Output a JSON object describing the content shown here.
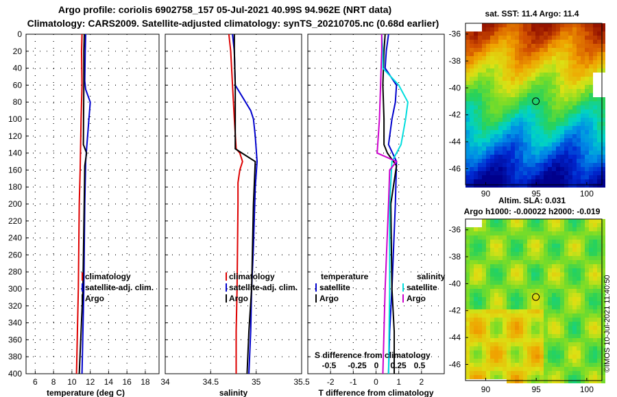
{
  "titles": {
    "line1": "Argo profile: coriolis 6902758_157 05-Jul-2021 40.99S 94.962E (NRT data)",
    "line2": "Climatology: CARS2009. Satellite-adjusted climatology: synTS_20210705.nc (0.68d earlier)"
  },
  "colors": {
    "climatology": "#dd0000",
    "satellite": "#0000cc",
    "argo": "#000000",
    "sat_salinity": "#00dddd",
    "argo_salinity": "#cc00cc"
  },
  "chart_data": [
    {
      "type": "line",
      "id": "temperature",
      "xlabel": "temperature (deg C)",
      "ylabel": "",
      "xlim": [
        5,
        19.5
      ],
      "ylim": [
        0,
        400
      ],
      "xticks": [
        "6",
        "8",
        "10",
        "12",
        "14",
        "16",
        "18"
      ],
      "xtick_values": [
        6,
        8,
        10,
        12,
        14,
        16,
        18
      ],
      "yticks": [
        "0",
        "20",
        "40",
        "60",
        "80",
        "100",
        "120",
        "140",
        "160",
        "180",
        "200",
        "220",
        "240",
        "260",
        "280",
        "300",
        "320",
        "340",
        "360",
        "380",
        "400"
      ],
      "ytick_values": [
        0,
        20,
        40,
        60,
        80,
        100,
        120,
        140,
        160,
        180,
        200,
        220,
        240,
        260,
        280,
        300,
        320,
        340,
        360,
        380,
        400
      ],
      "legend": [
        "climatology",
        "satellite-adj. clim.",
        "Argo"
      ],
      "series": [
        {
          "name": "climatology",
          "color": "#dd0000",
          "x": [
            11.1,
            11.05,
            11.1,
            11.0,
            10.9,
            10.8,
            10.7,
            10.6,
            10.5
          ],
          "depth": [
            0,
            20,
            60,
            100,
            160,
            200,
            300,
            350,
            400
          ]
        },
        {
          "name": "satellite-adj. clim.",
          "color": "#0000cc",
          "x": [
            11.5,
            11.45,
            11.4,
            11.5,
            12.0,
            11.6,
            11.5,
            11.4,
            11.3,
            11.2,
            11.1
          ],
          "depth": [
            0,
            20,
            55,
            65,
            80,
            135,
            150,
            200,
            300,
            350,
            400
          ]
        },
        {
          "name": "Argo",
          "color": "#000000",
          "x": [
            11.35,
            11.3,
            11.3,
            11.25,
            11.6,
            11.4,
            11.2,
            11.0,
            10.8
          ],
          "depth": [
            0,
            20,
            60,
            130,
            140,
            155,
            300,
            350,
            400
          ]
        }
      ]
    },
    {
      "type": "line",
      "id": "salinity",
      "xlabel": "salinity",
      "ylabel": "",
      "xlim": [
        34,
        35.5
      ],
      "ylim": [
        0,
        400
      ],
      "xticks": [
        "34",
        "34.5",
        "35",
        "35.5"
      ],
      "xtick_values": [
        34,
        34.5,
        35,
        35.5
      ],
      "legend": [
        "climatology",
        "satellite-adj. clim.",
        "Argo"
      ],
      "series": [
        {
          "name": "climatology",
          "color": "#dd0000",
          "x": [
            34.7,
            34.72,
            34.74,
            34.76,
            34.78,
            34.82,
            34.85,
            34.82,
            34.8,
            34.8,
            34.79,
            34.78,
            34.78
          ],
          "depth": [
            0,
            20,
            60,
            100,
            135,
            140,
            150,
            160,
            175,
            200,
            300,
            350,
            400
          ]
        },
        {
          "name": "satellite-adj. clim.",
          "color": "#0000cc",
          "x": [
            34.74,
            34.76,
            34.77,
            34.94,
            34.97,
            34.99,
            35.01,
            34.99,
            34.97,
            34.95,
            34.94,
            34.92
          ],
          "depth": [
            0,
            20,
            60,
            90,
            100,
            120,
            150,
            180,
            250,
            300,
            350,
            400
          ]
        },
        {
          "name": "Argo",
          "color": "#000000",
          "x": [
            34.76,
            34.76,
            34.77,
            34.77,
            34.99,
            34.97,
            34.95,
            34.92,
            34.9
          ],
          "depth": [
            0,
            20,
            60,
            135,
            150,
            200,
            300,
            350,
            400
          ]
        }
      ]
    },
    {
      "type": "line",
      "id": "difference",
      "xlabel": "T difference from climatology",
      "ylabel": "",
      "xlim": [
        -3,
        3
      ],
      "ylim": [
        0,
        400
      ],
      "xticks": [
        "-2",
        "-1",
        "0",
        "1",
        "2"
      ],
      "xtick_values": [
        -2,
        -1,
        0,
        1,
        2
      ],
      "top_axis_label": "S difference from climatology",
      "top_axis_ticks": [
        "-0.5",
        "-0.25",
        "0",
        "0.25",
        "0.5"
      ],
      "legend_left_title": "temperature",
      "legend_right_title": "salinity",
      "legend": [
        "satellite",
        "Argo",
        "satellite",
        "Argo"
      ],
      "series": [
        {
          "name": "T satellite",
          "color": "#0000cc",
          "x": [
            0.55,
            0.45,
            0.4,
            0.9,
            0.85,
            0.7,
            0.55,
            0.9,
            0.85,
            0.7,
            0.6,
            0.55
          ],
          "depth": [
            0,
            20,
            40,
            60,
            80,
            100,
            130,
            150,
            200,
            300,
            350,
            400
          ]
        },
        {
          "name": "T Argo",
          "color": "#000000",
          "x": [
            0.4,
            0.35,
            0.3,
            0.35,
            0.35,
            0.5,
            0.9,
            0.65,
            0.7,
            0.8,
            0.8
          ],
          "depth": [
            0,
            20,
            60,
            100,
            130,
            140,
            155,
            200,
            300,
            350,
            400
          ]
        },
        {
          "name": "S satellite",
          "color": "#00dddd",
          "x": [
            0.25,
            0.3,
            0.3,
            1.0,
            1.4,
            1.3,
            1.1,
            0.7,
            0.6,
            0.6,
            0.55
          ],
          "depth": [
            0,
            20,
            40,
            60,
            80,
            100,
            130,
            150,
            200,
            300,
            400
          ]
        },
        {
          "name": "S Argo",
          "color": "#cc00cc",
          "x": [
            0.25,
            0.25,
            0.2,
            0.15,
            0.05,
            0.9,
            0.6,
            0.55,
            0.4,
            0.35,
            0.3
          ],
          "depth": [
            0,
            20,
            60,
            100,
            140,
            150,
            160,
            200,
            300,
            350,
            400
          ]
        }
      ]
    },
    {
      "type": "heatmap",
      "id": "sst_map",
      "title": "sat. SST: 11.4 Argo: 11.4",
      "xticks": [
        "90",
        "95",
        "100"
      ],
      "yticks": [
        "-36",
        "-38",
        "-40",
        "-42",
        "-44",
        "-46"
      ],
      "xlim": [
        88,
        101.5
      ],
      "ylim": [
        -47.2,
        -35.2
      ],
      "marker": {
        "lon": 94.962,
        "lat": -40.99
      }
    },
    {
      "type": "heatmap",
      "id": "sla_map",
      "title": "Altim. SLA: 0.031",
      "subtitle": "Argo h1000: -0.00022 h2000: -0.019",
      "xticks": [
        "90",
        "95",
        "100"
      ],
      "yticks": [
        "-36",
        "-38",
        "-40",
        "-42",
        "-44",
        "-46"
      ],
      "xlim": [
        88,
        101.5
      ],
      "ylim": [
        -47.2,
        -35.2
      ],
      "marker": {
        "lon": 94.962,
        "lat": -40.99
      }
    }
  ],
  "footer": "©IMOS 10-Jul-2021 11:40:50"
}
